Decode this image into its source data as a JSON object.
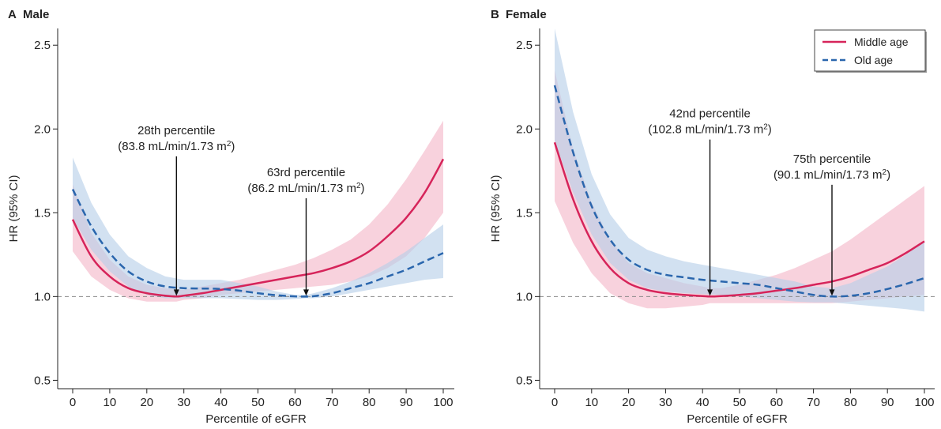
{
  "figure": {
    "title": ""
  },
  "chart_data": [
    {
      "type": "line",
      "panel_letter": "A",
      "panel_title": "Male",
      "xlabel": "Percentile of eGFR",
      "ylabel": "HR (95% CI)",
      "xlim": [
        0,
        100
      ],
      "ylim": [
        0.45,
        2.6
      ],
      "xticks": [
        0,
        10,
        20,
        30,
        40,
        50,
        60,
        70,
        80,
        90,
        100
      ],
      "yticks": [
        0.5,
        1.0,
        1.5,
        2.0,
        2.5
      ],
      "ytick_labels": [
        "0.5",
        "1.0",
        "1.5",
        "2.0",
        "2.5"
      ],
      "reference_line": 1.0,
      "grid": false,
      "series": [
        {
          "name": "Middle age",
          "color": "#d6245a",
          "band_color": "#f4b6c8",
          "dash": "solid",
          "x": [
            0,
            5,
            10,
            15,
            20,
            25,
            28,
            30,
            35,
            40,
            45,
            50,
            55,
            60,
            65,
            70,
            75,
            80,
            85,
            90,
            95,
            100
          ],
          "y": [
            1.46,
            1.24,
            1.12,
            1.05,
            1.02,
            1.005,
            1.0,
            1.005,
            1.02,
            1.04,
            1.06,
            1.08,
            1.1,
            1.12,
            1.14,
            1.17,
            1.21,
            1.27,
            1.36,
            1.47,
            1.62,
            1.82
          ],
          "lower": [
            1.27,
            1.12,
            1.04,
            0.99,
            0.97,
            0.97,
            0.97,
            0.98,
            0.99,
            1.01,
            1.02,
            1.03,
            1.04,
            1.05,
            1.06,
            1.07,
            1.09,
            1.12,
            1.17,
            1.24,
            1.35,
            1.5
          ],
          "upper": [
            1.67,
            1.38,
            1.22,
            1.12,
            1.07,
            1.05,
            1.04,
            1.04,
            1.06,
            1.08,
            1.1,
            1.13,
            1.16,
            1.19,
            1.23,
            1.28,
            1.34,
            1.43,
            1.55,
            1.7,
            1.87,
            2.05
          ]
        },
        {
          "name": "Old age",
          "color": "#2a66ad",
          "band_color": "#b7cfe8",
          "dash": "dashed",
          "x": [
            0,
            5,
            10,
            15,
            20,
            25,
            30,
            35,
            40,
            45,
            50,
            55,
            60,
            63,
            65,
            70,
            75,
            80,
            85,
            90,
            95,
            100
          ],
          "y": [
            1.64,
            1.42,
            1.26,
            1.15,
            1.09,
            1.06,
            1.05,
            1.048,
            1.045,
            1.035,
            1.02,
            1.008,
            1.001,
            1.0,
            1.002,
            1.02,
            1.05,
            1.08,
            1.12,
            1.16,
            1.21,
            1.26
          ],
          "lower": [
            1.47,
            1.28,
            1.15,
            1.06,
            1.01,
            0.99,
            0.99,
            0.99,
            0.99,
            0.985,
            0.98,
            0.98,
            0.985,
            0.99,
            0.99,
            1.0,
            1.02,
            1.04,
            1.06,
            1.08,
            1.1,
            1.11
          ],
          "upper": [
            1.83,
            1.56,
            1.37,
            1.24,
            1.17,
            1.12,
            1.1,
            1.1,
            1.1,
            1.08,
            1.06,
            1.03,
            1.01,
            1.01,
            1.02,
            1.05,
            1.09,
            1.14,
            1.2,
            1.27,
            1.35,
            1.43
          ]
        }
      ],
      "annotations": [
        {
          "line1": "28th percentile",
          "line2_prefix": "(83.8 mL/min/1.73 m",
          "sup": "2",
          "line2_suffix": ")",
          "x": 28,
          "y": 1.0,
          "label_y": 1.95
        },
        {
          "line1": "63rd percentile",
          "line2_prefix": "(86.2 mL/min/1.73 m",
          "sup": "2",
          "line2_suffix": ")",
          "x": 63,
          "y": 1.0,
          "label_y": 1.7
        }
      ]
    },
    {
      "type": "line",
      "panel_letter": "B",
      "panel_title": "Female",
      "xlabel": "Percentile of eGFR",
      "ylabel": "HR (95% CI)",
      "xlim": [
        0,
        100
      ],
      "ylim": [
        0.45,
        2.6
      ],
      "xticks": [
        0,
        10,
        20,
        30,
        40,
        50,
        60,
        70,
        80,
        90,
        100
      ],
      "yticks": [
        0.5,
        1.0,
        1.5,
        2.0,
        2.5
      ],
      "ytick_labels": [
        "0.5",
        "1.0",
        "1.5",
        "2.0",
        "2.5"
      ],
      "reference_line": 1.0,
      "grid": false,
      "legend": {
        "position": "top-right",
        "entries": [
          "Middle age",
          "Old age"
        ]
      },
      "series": [
        {
          "name": "Middle age",
          "color": "#d6245a",
          "band_color": "#f4b6c8",
          "dash": "solid",
          "x": [
            0,
            5,
            10,
            15,
            20,
            25,
            30,
            35,
            40,
            42,
            45,
            50,
            55,
            60,
            65,
            70,
            75,
            80,
            85,
            90,
            95,
            100
          ],
          "y": [
            1.92,
            1.58,
            1.33,
            1.17,
            1.08,
            1.04,
            1.02,
            1.01,
            1.003,
            1.0,
            1.003,
            1.01,
            1.02,
            1.035,
            1.05,
            1.07,
            1.09,
            1.12,
            1.16,
            1.2,
            1.26,
            1.33
          ],
          "lower": [
            1.57,
            1.32,
            1.14,
            1.02,
            0.96,
            0.93,
            0.93,
            0.94,
            0.95,
            0.96,
            0.96,
            0.96,
            0.96,
            0.96,
            0.96,
            0.96,
            0.96,
            0.97,
            0.98,
            0.99,
            1.0,
            1.01
          ],
          "upper": [
            2.35,
            1.88,
            1.56,
            1.34,
            1.2,
            1.14,
            1.11,
            1.08,
            1.06,
            1.05,
            1.05,
            1.07,
            1.1,
            1.13,
            1.17,
            1.22,
            1.27,
            1.34,
            1.42,
            1.5,
            1.58,
            1.66
          ]
        },
        {
          "name": "Old age",
          "color": "#2a66ad",
          "band_color": "#b7cfe8",
          "dash": "dashed",
          "x": [
            0,
            5,
            10,
            15,
            20,
            25,
            30,
            35,
            40,
            45,
            50,
            55,
            60,
            65,
            70,
            75,
            80,
            85,
            90,
            95,
            100
          ],
          "y": [
            2.26,
            1.86,
            1.54,
            1.34,
            1.22,
            1.16,
            1.13,
            1.115,
            1.1,
            1.09,
            1.08,
            1.07,
            1.05,
            1.03,
            1.01,
            1.0,
            1.005,
            1.02,
            1.045,
            1.075,
            1.11
          ],
          "lower": [
            1.93,
            1.62,
            1.37,
            1.2,
            1.1,
            1.05,
            1.03,
            1.02,
            1.015,
            1.01,
            1.0,
            0.99,
            0.98,
            0.97,
            0.965,
            0.965,
            0.955,
            0.945,
            0.935,
            0.925,
            0.91
          ],
          "upper": [
            2.6,
            2.1,
            1.73,
            1.49,
            1.35,
            1.28,
            1.24,
            1.21,
            1.19,
            1.17,
            1.15,
            1.13,
            1.11,
            1.09,
            1.06,
            1.05,
            1.08,
            1.13,
            1.18,
            1.25,
            1.33
          ]
        }
      ],
      "annotations": [
        {
          "line1": "42nd percentile",
          "line2_prefix": "(102.8 mL/min/1.73 m",
          "sup": "2",
          "line2_suffix": ")",
          "x": 42,
          "y": 1.0,
          "label_y": 2.05
        },
        {
          "line1": "75th percentile",
          "line2_prefix": "(90.1 mL/min/1.73 m",
          "sup": "2",
          "line2_suffix": ")",
          "x": 75,
          "y": 1.0,
          "label_y": 1.78
        }
      ]
    }
  ]
}
